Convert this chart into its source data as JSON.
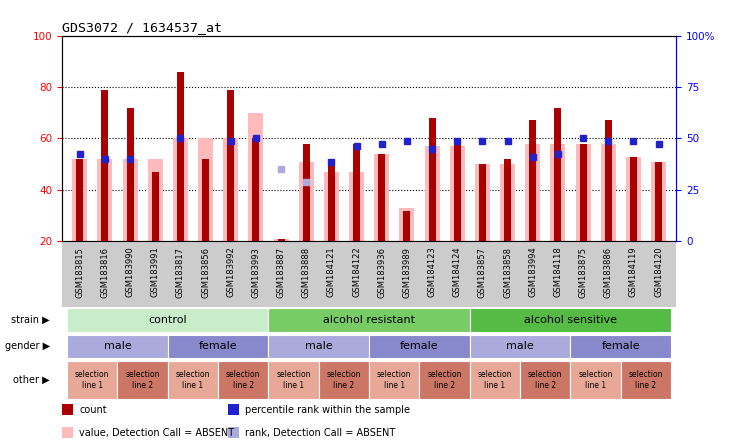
{
  "title": "GDS3072 / 1634537_at",
  "samples": [
    "GSM183815",
    "GSM183816",
    "GSM183990",
    "GSM183991",
    "GSM183817",
    "GSM183856",
    "GSM183992",
    "GSM183993",
    "GSM183887",
    "GSM183888",
    "GSM184121",
    "GSM184122",
    "GSM183936",
    "GSM183989",
    "GSM184123",
    "GSM184124",
    "GSM183857",
    "GSM183858",
    "GSM183994",
    "GSM184118",
    "GSM183875",
    "GSM183886",
    "GSM184119",
    "GSM184120"
  ],
  "red_bars": [
    52,
    79,
    72,
    47,
    86,
    52,
    79,
    60,
    21,
    58,
    51,
    58,
    54,
    32,
    68,
    60,
    50,
    52,
    67,
    72,
    58,
    67,
    53,
    51
  ],
  "pink_bars": [
    52,
    52,
    52,
    52,
    60,
    60,
    60,
    70,
    21,
    51,
    47,
    47,
    54,
    33,
    57,
    57,
    50,
    50,
    58,
    58,
    58,
    58,
    53,
    51
  ],
  "blue_squares": [
    54,
    52,
    52,
    null,
    60,
    null,
    59,
    60,
    null,
    null,
    51,
    57,
    58,
    59,
    56,
    59,
    59,
    59,
    53,
    54,
    60,
    59,
    59,
    58
  ],
  "light_blue_squares": [
    null,
    null,
    null,
    null,
    null,
    null,
    null,
    null,
    48,
    43,
    null,
    null,
    null,
    null,
    null,
    null,
    null,
    null,
    null,
    null,
    null,
    null,
    null,
    null
  ],
  "strain_groups": [
    {
      "label": "control",
      "start": 0,
      "end": 8,
      "color": "#c8edc8"
    },
    {
      "label": "alcohol resistant",
      "start": 8,
      "end": 16,
      "color": "#77cc66"
    },
    {
      "label": "alcohol sensitive",
      "start": 16,
      "end": 24,
      "color": "#55bb44"
    }
  ],
  "gender_groups": [
    {
      "label": "male",
      "start": 0,
      "end": 4,
      "color": "#aaaadd"
    },
    {
      "label": "female",
      "start": 4,
      "end": 8,
      "color": "#8888cc"
    },
    {
      "label": "male",
      "start": 8,
      "end": 12,
      "color": "#aaaadd"
    },
    {
      "label": "female",
      "start": 12,
      "end": 16,
      "color": "#8888cc"
    },
    {
      "label": "male",
      "start": 16,
      "end": 20,
      "color": "#aaaadd"
    },
    {
      "label": "female",
      "start": 20,
      "end": 24,
      "color": "#8888cc"
    }
  ],
  "other_groups": [
    {
      "label": "selection\nline 1",
      "start": 0,
      "end": 2,
      "color": "#e8a898"
    },
    {
      "label": "selection\nline 2",
      "start": 2,
      "end": 4,
      "color": "#cc7766"
    },
    {
      "label": "selection\nline 1",
      "start": 4,
      "end": 6,
      "color": "#e8a898"
    },
    {
      "label": "selection\nline 2",
      "start": 6,
      "end": 8,
      "color": "#cc7766"
    },
    {
      "label": "selection\nline 1",
      "start": 8,
      "end": 10,
      "color": "#e8a898"
    },
    {
      "label": "selection\nline 2",
      "start": 10,
      "end": 12,
      "color": "#cc7766"
    },
    {
      "label": "selection\nline 1",
      "start": 12,
      "end": 14,
      "color": "#e8a898"
    },
    {
      "label": "selection\nline 2",
      "start": 14,
      "end": 16,
      "color": "#cc7766"
    },
    {
      "label": "selection\nline 1",
      "start": 16,
      "end": 18,
      "color": "#e8a898"
    },
    {
      "label": "selection\nline 2",
      "start": 18,
      "end": 20,
      "color": "#cc7766"
    },
    {
      "label": "selection\nline 1",
      "start": 20,
      "end": 22,
      "color": "#e8a898"
    },
    {
      "label": "selection\nline 2",
      "start": 22,
      "end": 24,
      "color": "#cc7766"
    }
  ],
  "ylim": [
    20,
    100
  ],
  "yticks_left": [
    20,
    40,
    60,
    80,
    100
  ],
  "bar_color_dark_red": "#aa0000",
  "bar_color_pink": "#ffbbbb",
  "blue_sq_color": "#2222cc",
  "light_blue_sq_color": "#aaaadd",
  "background_color": "#ffffff"
}
